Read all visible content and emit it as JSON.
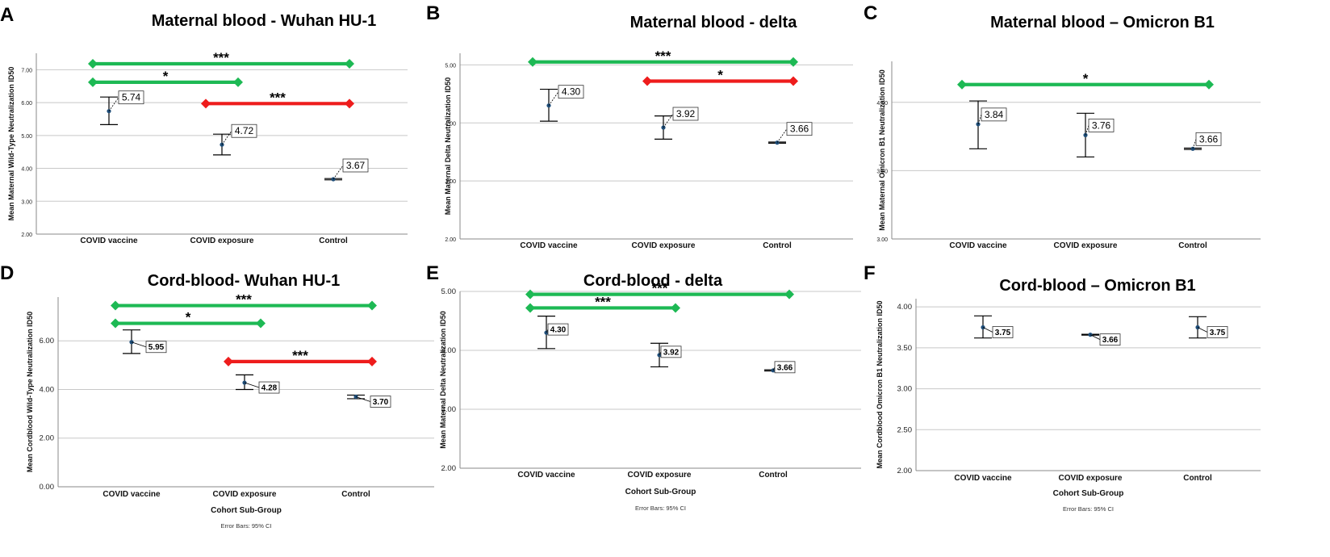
{
  "colors": {
    "green": "#1db954",
    "red": "#ee1c1c",
    "point": "#1f4e79",
    "grid": "#c8c8c8",
    "axis": "#8a8a8a"
  },
  "chart_data": [
    {
      "letter": "A",
      "type": "errorbar",
      "title": "Maternal blood - Wuhan HU-1",
      "ylabel": "Mean Maternal Wild-Type Neutralization ID50",
      "xlabel": "",
      "note": "",
      "ylim": [
        2,
        7.5
      ],
      "yticks": [
        2,
        3,
        4,
        5,
        6,
        7
      ],
      "ytick_labels": [
        "2.00",
        "3.00",
        "4.00",
        "5.00",
        "6.00",
        "7.00"
      ],
      "categories": [
        "COVID vaccine",
        "COVID exposure",
        "Control"
      ],
      "means": [
        5.74,
        4.72,
        3.67
      ],
      "lower": [
        5.33,
        4.41,
        3.65
      ],
      "upper": [
        6.17,
        5.04,
        3.69
      ],
      "labels": [
        "5.74",
        "4.72",
        "3.67"
      ],
      "comparisons": [
        {
          "from": 0,
          "to": 2,
          "y": 7.18,
          "color": "green",
          "stars": "***"
        },
        {
          "from": 0,
          "to": 1,
          "y": 6.62,
          "color": "green",
          "stars": "*"
        },
        {
          "from": 1,
          "to": 2,
          "y": 5.97,
          "color": "red",
          "stars": "***"
        }
      ]
    },
    {
      "letter": "B",
      "type": "errorbar",
      "title": "Maternal blood - delta",
      "ylabel": "Mean Maternal Delta Neutralization ID50",
      "xlabel": "",
      "note": "",
      "ylim": [
        2,
        5.2
      ],
      "yticks": [
        2,
        3,
        4,
        5
      ],
      "ytick_labels": [
        "2.00",
        "3.00",
        "4.00",
        "5.00"
      ],
      "categories": [
        "COVID vaccine",
        "COVID exposure",
        "Control"
      ],
      "means": [
        4.3,
        3.92,
        3.66
      ],
      "lower": [
        4.03,
        3.72,
        3.65
      ],
      "upper": [
        4.58,
        4.12,
        3.67
      ],
      "labels": [
        "4.30",
        "3.92",
        "3.66"
      ],
      "comparisons": [
        {
          "from": 0,
          "to": 2,
          "y": 5.05,
          "color": "green",
          "stars": "***"
        },
        {
          "from": 1,
          "to": 2,
          "y": 4.72,
          "color": "red",
          "stars": "*"
        }
      ]
    },
    {
      "letter": "C",
      "type": "errorbar",
      "title": "Maternal blood – Omicron B1",
      "ylabel": "Mean Maternal Omicron B1 Neutralization ID50",
      "xlabel": "",
      "note": "",
      "ylim": [
        3,
        4.3
      ],
      "yticks": [
        3,
        3.5,
        4
      ],
      "ytick_labels": [
        "3.00",
        "3.50",
        "4.00"
      ],
      "categories": [
        "COVID vaccine",
        "COVID exposure",
        "Control"
      ],
      "means": [
        3.84,
        3.76,
        3.66
      ],
      "lower": [
        3.66,
        3.6,
        3.655
      ],
      "upper": [
        4.01,
        3.92,
        3.665
      ],
      "labels": [
        "3.84",
        "3.76",
        "3.66"
      ],
      "comparisons": [
        {
          "from": 0,
          "to": 2,
          "y": 4.13,
          "color": "green",
          "stars": "*"
        }
      ]
    },
    {
      "letter": "D",
      "type": "errorbar",
      "title": "Cord-blood- Wuhan HU-1",
      "ylabel": "Mean Cordblood Wild-Type Neutralization ID50",
      "xlabel": "Cohort Sub-Group",
      "note": "Error Bars: 95% CI",
      "ylim": [
        0,
        7.8
      ],
      "yticks": [
        0,
        2,
        4,
        6
      ],
      "ytick_labels": [
        "0.00",
        "2.00",
        "4.00",
        "6.00"
      ],
      "categories": [
        "COVID vaccine",
        "COVID exposure",
        "Control"
      ],
      "means": [
        5.95,
        4.28,
        3.7
      ],
      "lower": [
        5.48,
        4.0,
        3.62
      ],
      "upper": [
        6.45,
        4.6,
        3.77
      ],
      "labels": [
        "5.95",
        "4.28",
        "3.70"
      ],
      "comparisons": [
        {
          "from": 0,
          "to": 2,
          "y": 7.45,
          "color": "green",
          "stars": "***"
        },
        {
          "from": 0,
          "to": 1,
          "y": 6.72,
          "color": "green",
          "stars": "*"
        },
        {
          "from": 1,
          "to": 2,
          "y": 5.15,
          "color": "red",
          "stars": "***"
        }
      ]
    },
    {
      "letter": "E",
      "type": "errorbar",
      "title": "Cord-blood - delta",
      "ylabel": "Mean Maternal Delta Neutralization ID50",
      "xlabel": "Cohort Sub-Group",
      "note": "Error Bars: 95% CI",
      "ylim": [
        2,
        5.0
      ],
      "yticks": [
        2,
        3,
        4,
        5
      ],
      "ytick_labels": [
        "2.00",
        "3.00",
        "4.00",
        "5.00"
      ],
      "categories": [
        "COVID vaccine",
        "COVID exposure",
        "Control"
      ],
      "means": [
        4.3,
        3.92,
        3.66
      ],
      "lower": [
        4.03,
        3.72,
        3.65
      ],
      "upper": [
        4.58,
        4.12,
        3.67
      ],
      "labels": [
        "4.30",
        "3.92",
        "3.66"
      ],
      "comparisons": [
        {
          "from": 0,
          "to": 2,
          "y": 4.95,
          "color": "green",
          "stars": "***"
        },
        {
          "from": 0,
          "to": 1,
          "y": 4.72,
          "color": "green",
          "stars": "***"
        }
      ]
    },
    {
      "letter": "F",
      "type": "errorbar",
      "title": "Cord-blood – Omicron B1",
      "ylabel": "Mean Cordblood Omicron B1 Neutralization ID50",
      "xlabel": "Cohort Sub-Group",
      "note": "Error Bars: 95% CI",
      "ylim": [
        2,
        4.1
      ],
      "yticks": [
        2,
        2.5,
        3,
        3.5,
        4
      ],
      "ytick_labels": [
        "2.00",
        "2.50",
        "3.00",
        "3.50",
        "4.00"
      ],
      "categories": [
        "COVID vaccine",
        "COVID exposure",
        "Control"
      ],
      "means": [
        3.75,
        3.66,
        3.75
      ],
      "lower": [
        3.62,
        3.655,
        3.62
      ],
      "upper": [
        3.89,
        3.665,
        3.88
      ],
      "labels": [
        "3.75",
        "3.66",
        "3.75"
      ],
      "comparisons": []
    }
  ]
}
